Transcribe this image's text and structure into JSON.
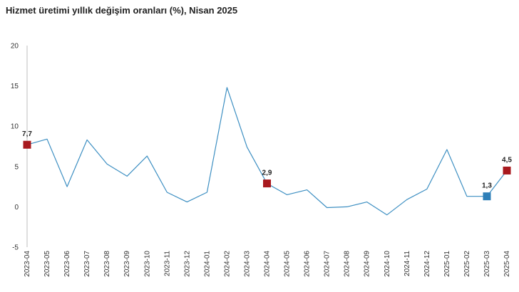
{
  "title": "Hizmet üretimi yıllık değişim oranları (%), Nisan 2025",
  "chart_data": {
    "type": "line",
    "title": "Hizmet üretimi yıllık değişim oranları (%), Nisan 2025",
    "xlabel": "",
    "ylabel": "",
    "ylim": [
      -5,
      20
    ],
    "yticks": [
      "20",
      "15",
      "10",
      "5",
      "0",
      "-5"
    ],
    "ytick_values": [
      20,
      15,
      10,
      5,
      0,
      -5
    ],
    "categories": [
      "2023-04",
      "2023-05",
      "2023-06",
      "2023-07",
      "2023-08",
      "2023-09",
      "2023-10",
      "2023-11",
      "2023-12",
      "2024-01",
      "2024-02",
      "2024-03",
      "2024-04",
      "2024-05",
      "2024-06",
      "2024-07",
      "2024-08",
      "2024-09",
      "2024-10",
      "2024-11",
      "2024-12",
      "2025-01",
      "2025-02",
      "2025-03",
      "2025-04"
    ],
    "series": [
      {
        "name": "Hizmet üretimi yıllık değişim (%)",
        "values": [
          7.7,
          8.4,
          2.5,
          8.3,
          5.3,
          3.8,
          6.3,
          1.8,
          0.6,
          1.8,
          14.8,
          7.4,
          2.9,
          1.5,
          2.1,
          -0.1,
          0.0,
          0.6,
          -1.0,
          0.9,
          2.2,
          7.1,
          1.3,
          1.3,
          4.5
        ],
        "color": "#3d8fc2"
      }
    ],
    "highlighted_points": [
      {
        "index": 0,
        "label": "7,7",
        "color": "#a8191e"
      },
      {
        "index": 12,
        "label": "2,9",
        "color": "#a8191e"
      },
      {
        "index": 23,
        "label": "1,3",
        "color": "#2e7fb8"
      },
      {
        "index": 24,
        "label": "4,5",
        "color": "#a8191e"
      }
    ]
  }
}
